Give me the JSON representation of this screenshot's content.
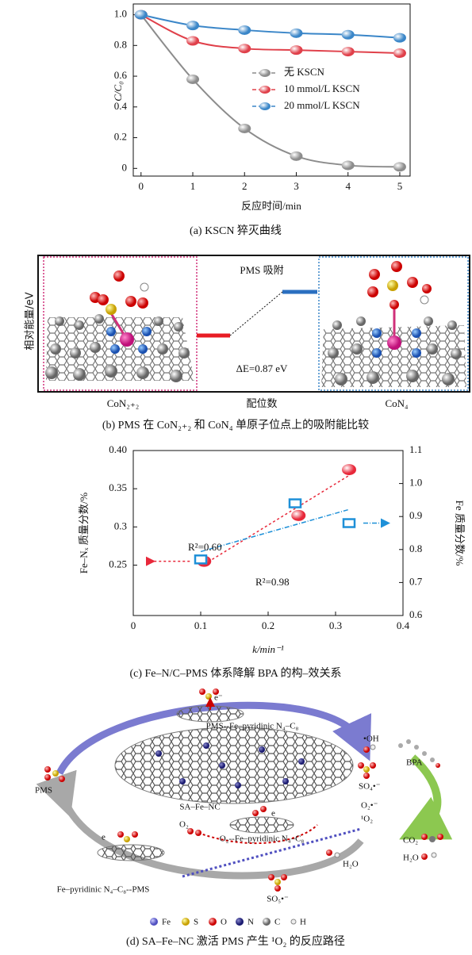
{
  "chart_data": [
    {
      "type": "line",
      "x_label": "反应时间/min",
      "y_label": "C/C₀",
      "x": [
        0,
        1,
        2,
        3,
        4,
        5
      ],
      "xlim": [
        -0.15,
        5.2
      ],
      "xticks": [
        0,
        1,
        2,
        3,
        4,
        5
      ],
      "ylim": [
        -0.05,
        1.07
      ],
      "yticks": [
        0,
        0.2,
        0.4,
        0.6,
        0.8,
        {
          "value": 1,
          "label": "1.0"
        }
      ],
      "series": [
        {
          "name": "无 KSCN",
          "color": "#8c8c8c",
          "values": [
            1.0,
            0.58,
            0.26,
            0.08,
            0.02,
            0.01
          ]
        },
        {
          "name": "10 mmol/L KSCN",
          "color": "#e0404a",
          "values": [
            1.0,
            0.83,
            0.78,
            0.77,
            0.76,
            0.75
          ]
        },
        {
          "name": "20 mmol/L KSCN",
          "color": "#3a86c8",
          "values": [
            1.0,
            0.93,
            0.9,
            0.88,
            0.87,
            0.85
          ]
        }
      ],
      "caption": "(a) KSCN 猝灭曲线"
    },
    {
      "type": "scatter",
      "x_label": "k/min⁻¹",
      "y_label": "Fe–Nₓ 质量分数/%",
      "y2_label": "Fe 质量分数/%",
      "xlim": [
        0,
        0.4
      ],
      "xticks": [
        0,
        0.1,
        0.2,
        0.3,
        0.4
      ],
      "ylim": [
        0.184,
        0.4
      ],
      "yticks": [
        0.25,
        0.3,
        0.35,
        {
          "value": 0.4,
          "label": "0.40"
        }
      ],
      "y2lim": [
        0.6,
        1.1
      ],
      "y2ticks": [
        0.6,
        0.7,
        0.8,
        0.9,
        {
          "value": 1,
          "label": "1.0"
        },
        1.1
      ],
      "series": [
        {
          "color": "#e8283a",
          "x": [
            0.105,
            0.245,
            0.32
          ],
          "values": [
            0.255,
            0.315,
            0.375
          ]
        },
        {
          "color": "#1e90d8",
          "axis": "y2",
          "x": [
            0.1,
            0.24,
            0.32
          ],
          "values": [
            0.77,
            0.94,
            0.88
          ]
        }
      ],
      "annotations": [
        "R²=0.60",
        "R²=0.98"
      ],
      "caption": "(c) Fe–N/C–PMS 体系降解 BPA 的构–效关系"
    }
  ],
  "panel_b": {
    "y_label": "相对能量/eV",
    "step_label": "PMS 吸附",
    "delta": "ΔE=0.87 eV",
    "x_labels": [
      "CoN₂₊₂",
      "配位数",
      "CoN₄"
    ],
    "caption": "(b) PMS 在 CoN₂₊₂ 和 CoN₄ 单原子位点上的吸附能比较"
  },
  "panel_d": {
    "labels": [
      "e⁻",
      "PMS--Fe–pyridinic N₄–C₈",
      "•OH",
      "BPA",
      "PMS",
      "SO₄•⁻",
      "SA–Fe–NC",
      "O₂•⁻",
      "¹O₂",
      "e",
      "O₂",
      "O₂--Fe–pyridinic N₄–C₈",
      "e",
      "CO₂",
      "H₂O",
      "H₂O",
      "Fe–pyridinic N₄–C₈--PMS",
      "SO₅•⁻"
    ],
    "legend": [
      "Fe",
      "S",
      "O",
      "N",
      "C",
      "H"
    ],
    "caption": "(d) SA–Fe–NC 激活 PMS 产生 ¹O₂ 的反应路径"
  }
}
